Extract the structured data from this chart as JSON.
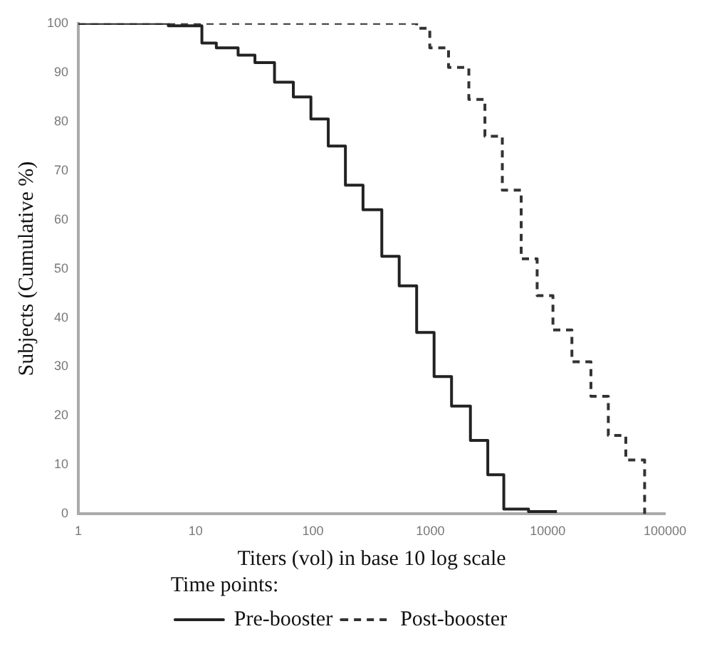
{
  "chart_data": {
    "type": "step",
    "xlabel": "Titers (vol) in base 10 log scale",
    "ylabel": "Subjects (Cumulative %)",
    "legend_title": "Time points:",
    "legend": "bottom",
    "log": "x",
    "grid": false,
    "marker": "none",
    "xlim": [
      1,
      100000
    ],
    "xticks": [
      1,
      10,
      100,
      1000,
      10000,
      100000
    ],
    "ylim": [
      0,
      100
    ],
    "yticks": [
      0,
      10,
      20,
      30,
      40,
      50,
      60,
      70,
      80,
      90,
      100
    ],
    "series": [
      {
        "name": "Pre-booster",
        "color": "#222222",
        "line_style": "solid",
        "x": [
          1,
          5.85,
          11.3,
          15,
          23,
          32,
          47,
          68,
          96,
          135,
          189,
          267,
          386,
          543,
          765,
          1077,
          1517,
          2197,
          3090,
          4230,
          6870,
          12000
        ],
        "values": [
          100,
          99.5,
          96,
          95,
          93.5,
          92,
          88,
          85,
          80.5,
          75,
          67,
          62,
          52.5,
          46.5,
          37,
          28,
          22,
          15,
          8,
          1,
          0.5,
          0.5
        ]
      },
      {
        "name": "Post-booster",
        "color": "#333333",
        "line_style": "dashed",
        "x": [
          1,
          765,
          990,
          1430,
          2130,
          2920,
          4110,
          5950,
          8140,
          11100,
          16100,
          23400,
          32900,
          46400,
          67100
        ],
        "values": [
          100,
          99,
          95,
          91,
          84.5,
          77,
          66,
          52,
          44.5,
          37.5,
          31,
          24,
          16,
          11,
          0
        ]
      }
    ]
  }
}
